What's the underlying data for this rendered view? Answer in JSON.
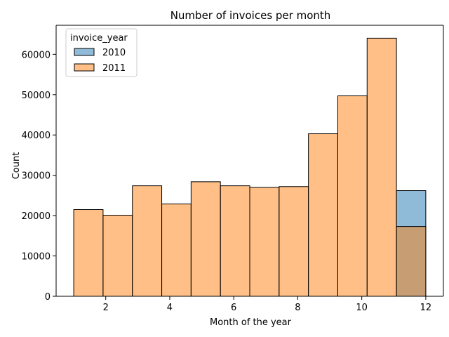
{
  "chart_data": {
    "type": "bar",
    "title": "Number of invoices per month",
    "xlabel": "Month of the year",
    "ylabel": "Count",
    "xlim": [
      0.45,
      12.55
    ],
    "ylim": [
      0,
      67200
    ],
    "xticks": [
      2,
      4,
      6,
      8,
      10,
      12
    ],
    "yticks": [
      0,
      10000,
      20000,
      30000,
      40000,
      50000,
      60000
    ],
    "bin_edges": [
      1.0,
      1.9167,
      2.8333,
      3.75,
      4.6667,
      5.5833,
      6.5,
      7.4167,
      8.3333,
      9.25,
      10.1667,
      11.0833,
      12.0
    ],
    "legend_title": "invoice_year",
    "legend_position": "upper left",
    "grid": false,
    "series": [
      {
        "name": "2010",
        "color": "#1f77b4",
        "fill_opacity": 0.5,
        "values": [
          0,
          0,
          0,
          0,
          0,
          0,
          0,
          0,
          0,
          0,
          0,
          26200
        ]
      },
      {
        "name": "2011",
        "color": "#ff7f0e",
        "fill_opacity": 0.5,
        "values": [
          21500,
          20100,
          27400,
          22900,
          28400,
          27400,
          27000,
          27200,
          40300,
          49700,
          64000,
          17300
        ]
      }
    ]
  }
}
